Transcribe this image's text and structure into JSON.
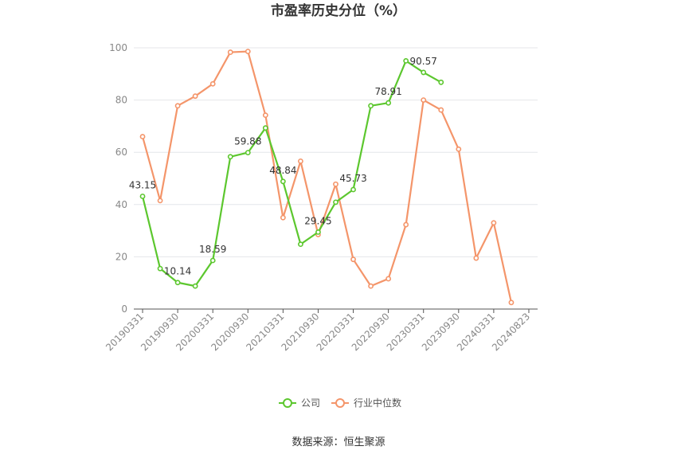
{
  "chart_data": {
    "type": "line",
    "title": "市盈率历史分位（%）",
    "xlabel": "",
    "ylabel": "",
    "ylim": [
      0,
      100
    ],
    "yticks": [
      0,
      20,
      40,
      60,
      80,
      100
    ],
    "grid": "horizontal",
    "legend_position": "bottom-center",
    "x": [
      "20190331",
      "20190630",
      "20190930",
      "20191231",
      "20200331",
      "20200630",
      "20200930",
      "20201231",
      "20210331",
      "20210630",
      "20210930",
      "20211231",
      "20220331",
      "20220630",
      "20220930",
      "20221231",
      "20230331",
      "20230630",
      "20230930",
      "20231231",
      "20240331",
      "20240630",
      "20240823"
    ],
    "xtick_labels": [
      "20190331",
      "20190930",
      "20200331",
      "20200930",
      "20210331",
      "20210930",
      "20220331",
      "20220930",
      "20230331",
      "20230930",
      "20240331",
      "20240823"
    ],
    "series": [
      {
        "name": "公司",
        "color": "#5cc72e",
        "values": [
          43.15,
          15.5,
          10.14,
          8.8,
          18.59,
          58.3,
          59.88,
          69.3,
          48.84,
          24.8,
          29.45,
          40.9,
          45.73,
          77.8,
          78.91,
          95.0,
          90.57,
          86.8,
          null,
          null,
          null,
          null,
          null
        ],
        "labels": [
          "43.15",
          null,
          "10.14",
          null,
          "18.59",
          null,
          "59.88",
          null,
          "48.84",
          null,
          "29.45",
          null,
          "45.73",
          null,
          "78.91",
          null,
          "90.57",
          null,
          null,
          null,
          null,
          null,
          null
        ]
      },
      {
        "name": "行业中位数",
        "color": "#f4956a",
        "values": [
          66.0,
          41.5,
          77.8,
          81.5,
          86.2,
          98.3,
          98.6,
          74.2,
          35.0,
          56.6,
          28.5,
          47.8,
          19.0,
          8.8,
          11.6,
          32.3,
          80.0,
          76.2,
          61.2,
          19.5,
          33.0,
          2.5,
          null
        ]
      }
    ]
  },
  "footer": {
    "source": "数据来源：恒生聚源"
  }
}
